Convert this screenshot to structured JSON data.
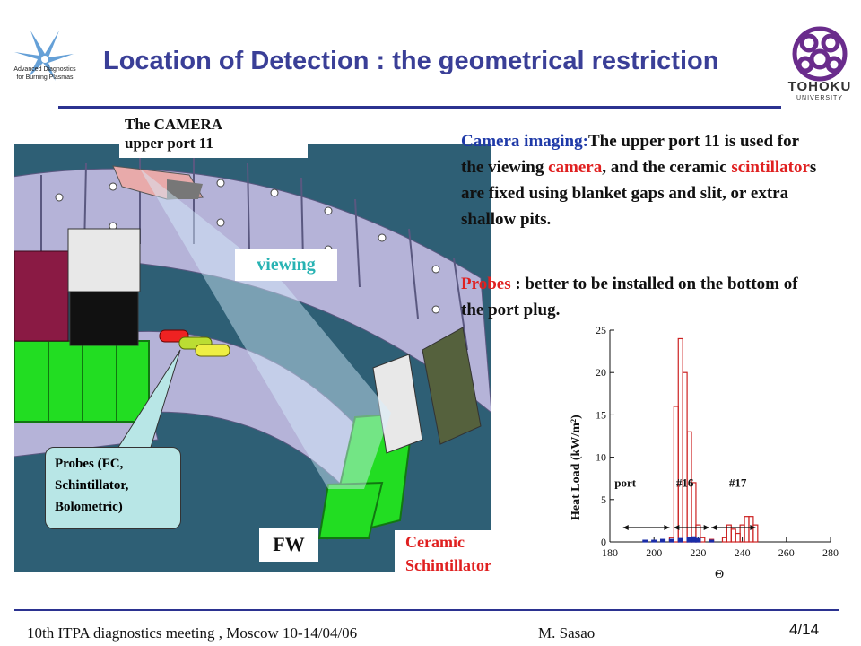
{
  "header": {
    "logo_text": [
      "Advanced Diagnostics",
      "for Burning Plasmas"
    ],
    "title": "Location of Detection : the geometrical restriction",
    "university_label": "TOHOKU",
    "university_sub": "UNIVERSITY"
  },
  "figure": {
    "camera_label_1": "The  CAMERA",
    "camera_label_2": "upper port 11",
    "viewing_label": "viewing",
    "probes_callout": [
      "Probes (FC,",
      "Schintillator,",
      "Bolometric)"
    ],
    "fw_label": "FW",
    "ceramic_label_1": "Ceramic",
    "ceramic_label_2": "Schintillator"
  },
  "text": {
    "p1_lead": "Camera imaging:",
    "p1_a": "The  upper port 11 is used for the viewing ",
    "p1_camera": "camera",
    "p1_b": ", and the ceramic ",
    "p1_scint": "scintillator",
    "p1_c": "s are fixed using blanket gaps and slit, or extra shallow pits.",
    "p2_lead": "Probes",
    "p2_rest": " : better to be installed on the bottom of the port plug."
  },
  "chart_data": {
    "type": "bar",
    "ylabel": "Heat Load (kW/m²)",
    "xlabel": "Θ",
    "xlim": [
      180,
      280
    ],
    "ylim": [
      0,
      25
    ],
    "xticks": [
      180,
      200,
      220,
      240,
      260,
      280
    ],
    "yticks": [
      0,
      5,
      10,
      15,
      20,
      25
    ],
    "bin_width": 2,
    "series": [
      {
        "color": "#cc2222",
        "x": [
          208,
          210,
          212,
          214,
          216,
          218,
          220,
          222,
          226,
          232,
          234,
          236,
          238,
          240,
          242,
          244,
          246
        ],
        "values": [
          0.5,
          16,
          24,
          20,
          13,
          7,
          2,
          0.5,
          0.3,
          0.5,
          2,
          1.5,
          1,
          2,
          3,
          3,
          2
        ]
      },
      {
        "color": "#1a2ca8",
        "x": [
          196,
          200,
          204,
          208,
          212,
          216,
          218,
          220,
          226
        ],
        "values": [
          0.2,
          0.2,
          0.3,
          0.3,
          0.4,
          0.5,
          0.6,
          0.4,
          0.2
        ]
      }
    ],
    "annotations": [
      "port",
      "#16",
      "#17"
    ]
  },
  "footer": {
    "meeting": "10th  ITPA diagnostics meeting , Moscow 10-14/04/06",
    "author": "M. Sasao",
    "page": "4/14"
  }
}
